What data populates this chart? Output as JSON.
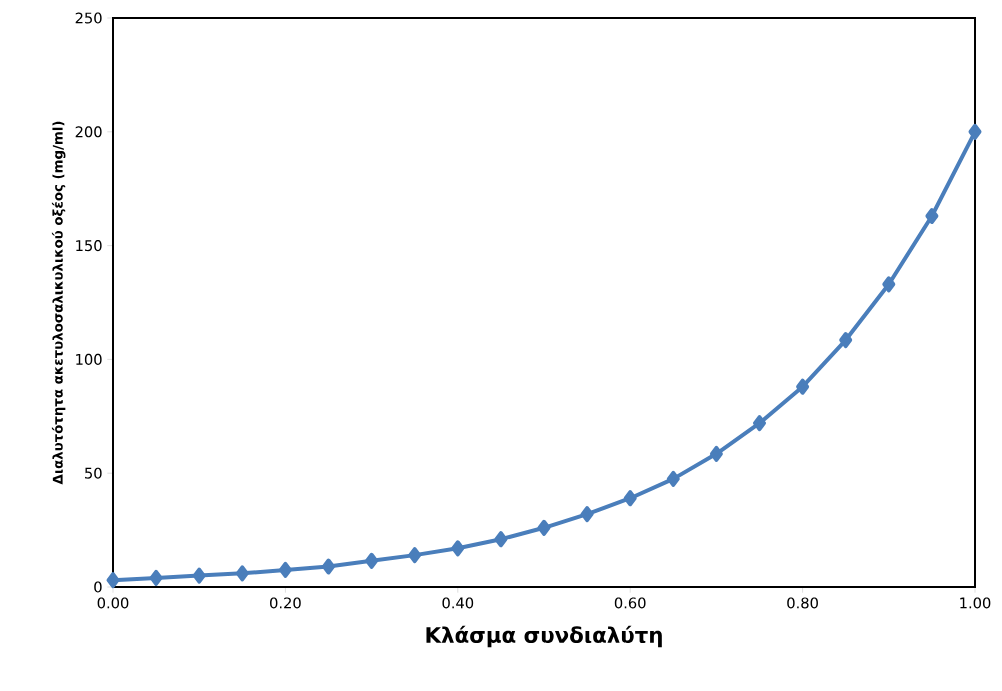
{
  "chart_data": {
    "type": "line",
    "xlabel": "Κλάσμα συνδιαλύτη",
    "ylabel": "Διαλυτότητα ακετυλοσαλικυλικού οξέος (mg/ml)",
    "x": [
      0,
      0.05,
      0.1,
      0.15,
      0.2,
      0.25,
      0.3,
      0.35,
      0.4,
      0.45,
      0.5,
      0.55,
      0.6,
      0.65,
      0.7,
      0.75,
      0.8,
      0.85,
      0.9,
      0.95,
      1.0
    ],
    "series": [
      {
        "color": "#4a7ebb",
        "values": [
          3,
          4,
          5,
          6,
          7.5,
          9,
          11.5,
          14,
          17,
          21,
          26,
          32,
          39,
          47.5,
          58.5,
          72,
          88,
          108.5,
          133,
          163,
          200
        ]
      }
    ],
    "xlim": [
      0,
      1
    ],
    "ylim": [
      0,
      250
    ],
    "xticks": [
      {
        "value": 0,
        "label": "0.00"
      },
      {
        "value": 0.2,
        "label": "0.20"
      },
      {
        "value": 0.4,
        "label": "0.40"
      },
      {
        "value": 0.6,
        "label": "0.60"
      },
      {
        "value": 0.8,
        "label": "0.80"
      },
      {
        "value": 1,
        "label": "1.00"
      }
    ],
    "yticks": [
      0,
      50,
      100,
      150,
      200,
      250
    ],
    "marker": "diamond",
    "line_style": "solid",
    "grid": false,
    "legend": false
  }
}
